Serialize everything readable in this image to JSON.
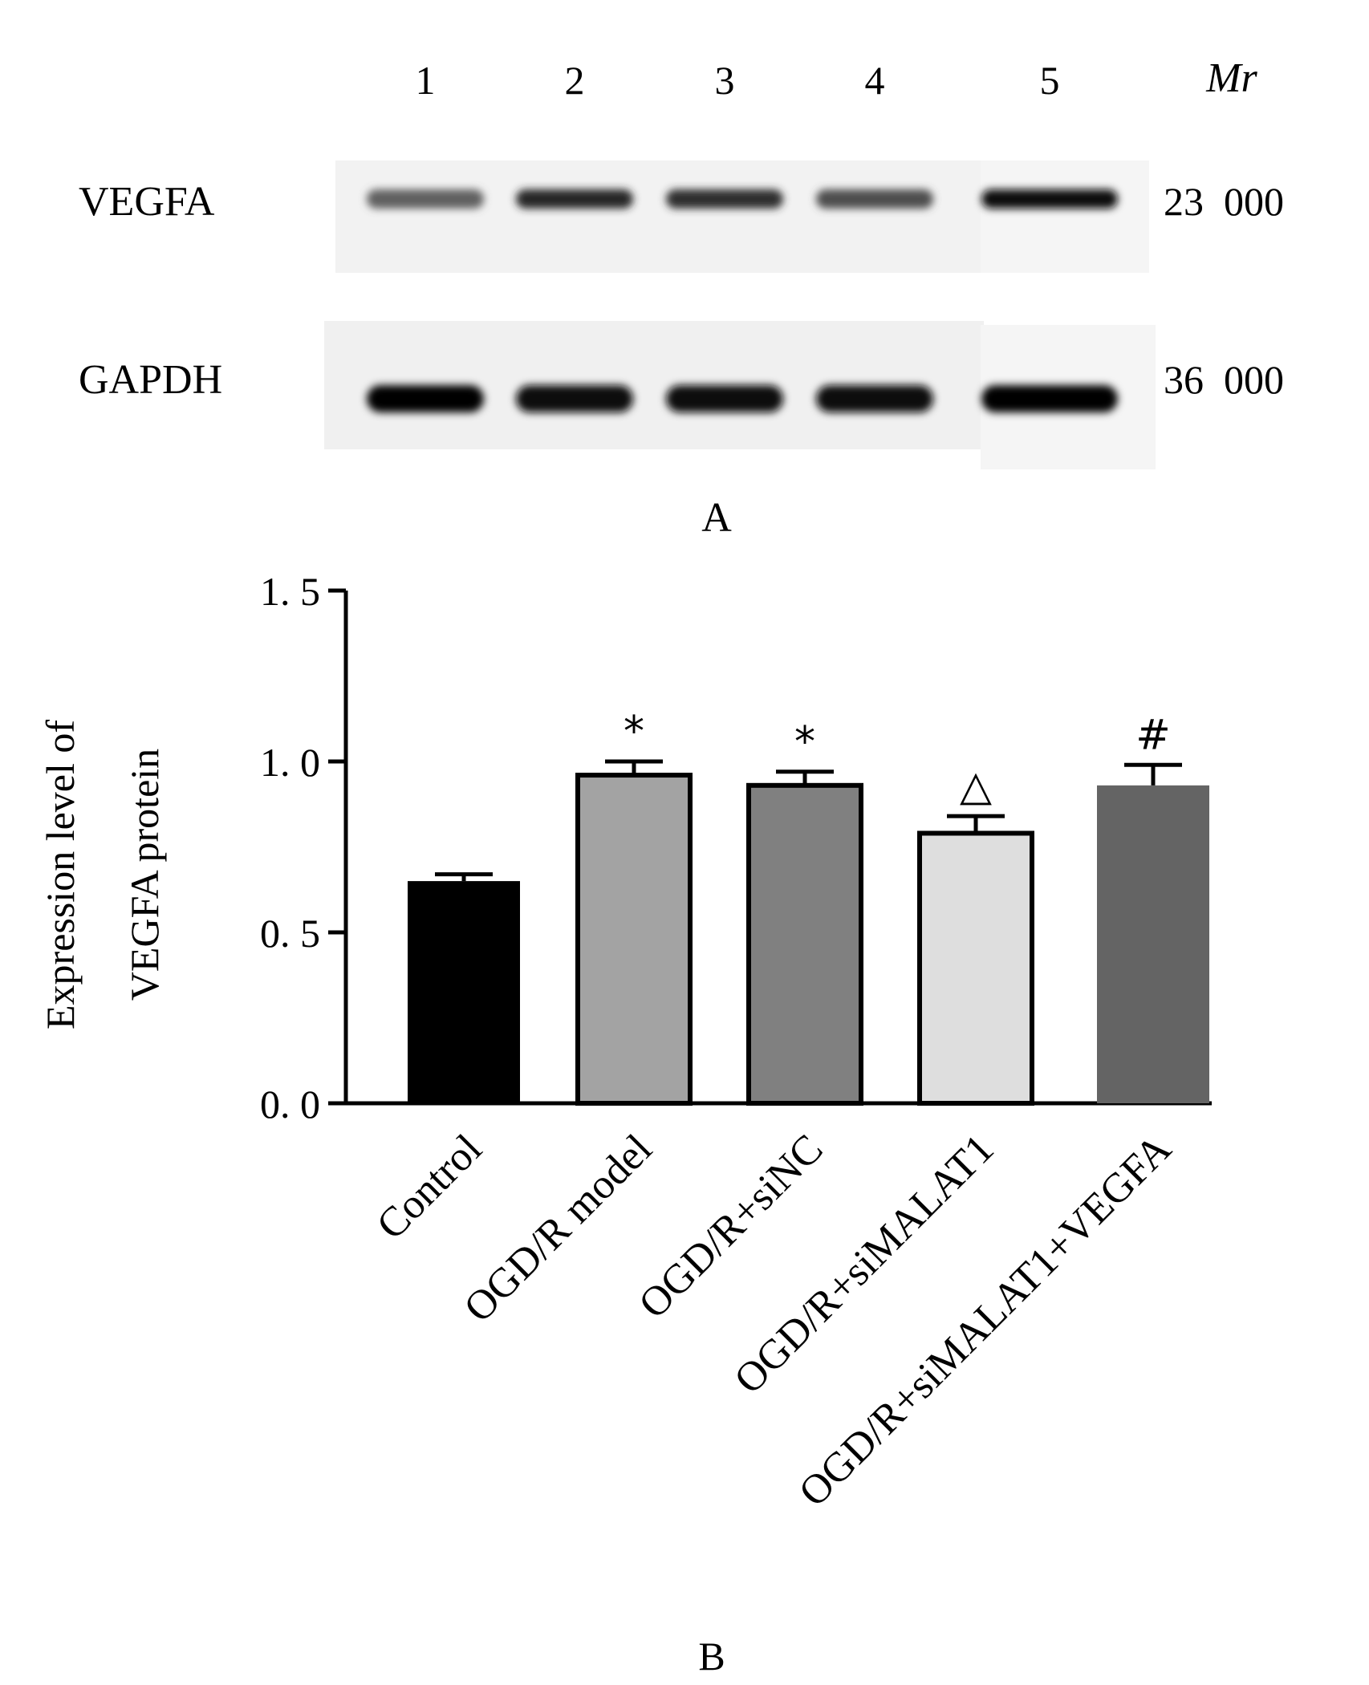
{
  "panel_a": {
    "label": "A",
    "lanes": [
      "1",
      "2",
      "3",
      "4",
      "5"
    ],
    "mr_header": "Mr",
    "rows": [
      {
        "name": "VEGFA",
        "mr": "23  000",
        "intensity": [
          0.62,
          0.85,
          0.82,
          0.7,
          0.95
        ]
      },
      {
        "name": "GAPDH",
        "mr": "36  000",
        "intensity": [
          0.98,
          0.96,
          0.97,
          0.96,
          0.98
        ]
      }
    ]
  },
  "panel_b": {
    "label": "B"
  },
  "chart_data": {
    "type": "bar",
    "ylabel": "Expression level of VEGFA protein",
    "ylabel_lines": [
      "Expression level of",
      "VEGFA protein"
    ],
    "ylim": [
      0,
      1.5
    ],
    "yticks": [
      0.0,
      0.5,
      1.0,
      1.5
    ],
    "ytick_labels": [
      "0. 0",
      "0. 5",
      "1. 0",
      "1. 5"
    ],
    "categories": [
      "Control",
      "OGD/R model",
      "OGD/R+siNC",
      "OGD/R+siMALAT1",
      "OGD/R+siMALAT1+VEGFA"
    ],
    "values": [
      0.65,
      0.96,
      0.93,
      0.79,
      0.93
    ],
    "errors": [
      0.02,
      0.04,
      0.04,
      0.05,
      0.06
    ],
    "annotations": [
      "",
      "*",
      "*",
      "△",
      "#"
    ],
    "colors": [
      "#000000",
      "#a3a3a3",
      "#808080",
      "#dedede",
      "#646464"
    ],
    "grid": false
  }
}
